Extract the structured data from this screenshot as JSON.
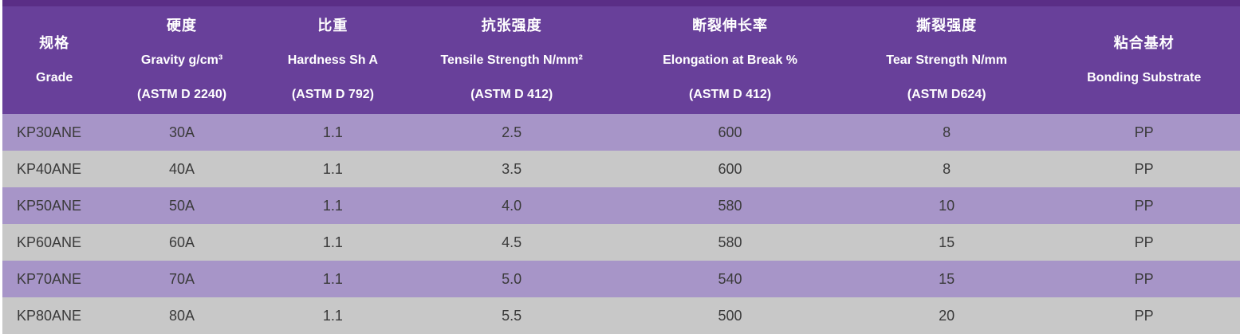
{
  "colors": {
    "top_strip": "#5a2e86",
    "header_bg": "#68409a",
    "header_text": "#ffffff",
    "row_purple": "#a795c8",
    "row_gray": "#c8c8c8",
    "body_text": "#3a3a3a"
  },
  "table": {
    "columns": [
      {
        "zh": "规格",
        "en": "Grade",
        "astm": ""
      },
      {
        "zh": "硬度",
        "en": "Gravity g/cm³",
        "astm": "(ASTM D 2240)"
      },
      {
        "zh": "比重",
        "en": "Hardness Sh A",
        "astm": "(ASTM D 792)"
      },
      {
        "zh": "抗张强度",
        "en": "Tensile Strength N/mm²",
        "astm": "(ASTM D 412)"
      },
      {
        "zh": "断裂伸长率",
        "en": "Elongation at Break %",
        "astm": "(ASTM D 412)"
      },
      {
        "zh": "撕裂强度",
        "en": "Tear Strength N/mm",
        "astm": "(ASTM D624)"
      },
      {
        "zh": "粘合基材",
        "en": "Bonding Substrate",
        "astm": ""
      }
    ],
    "rows": [
      [
        "KP30ANE",
        "30A",
        "1.1",
        "2.5",
        "600",
        "8",
        "PP"
      ],
      [
        "KP40ANE",
        "40A",
        "1.1",
        "3.5",
        "600",
        "8",
        "PP"
      ],
      [
        "KP50ANE",
        "50A",
        "1.1",
        "4.0",
        "580",
        "10",
        "PP"
      ],
      [
        "KP60ANE",
        "60A",
        "1.1",
        "4.5",
        "580",
        "15",
        "PP"
      ],
      [
        "KP70ANE",
        "70A",
        "1.1",
        "5.0",
        "540",
        "15",
        "PP"
      ],
      [
        "KP80ANE",
        "80A",
        "1.1",
        "5.5",
        "500",
        "20",
        "PP"
      ]
    ]
  },
  "chart_data": {
    "type": "table",
    "title": "",
    "columns_zh": [
      "规格",
      "硬度",
      "比重",
      "抗张强度",
      "断裂伸长率",
      "撕裂强度",
      "粘合基材"
    ],
    "columns_en": [
      "Grade",
      "Gravity g/cm³ (ASTM D 2240)",
      "Hardness Sh A (ASTM D 792)",
      "Tensile Strength N/mm² (ASTM D 412)",
      "Elongation at Break % (ASTM D 412)",
      "Tear Strength N/mm (ASTM D624)",
      "Bonding Substrate"
    ],
    "rows": [
      [
        "KP30ANE",
        "30A",
        "1.1",
        "2.5",
        "600",
        "8",
        "PP"
      ],
      [
        "KP40ANE",
        "40A",
        "1.1",
        "3.5",
        "600",
        "8",
        "PP"
      ],
      [
        "KP50ANE",
        "50A",
        "1.1",
        "4.0",
        "580",
        "10",
        "PP"
      ],
      [
        "KP60ANE",
        "60A",
        "1.1",
        "4.5",
        "580",
        "15",
        "PP"
      ],
      [
        "KP70ANE",
        "70A",
        "1.1",
        "5.0",
        "540",
        "15",
        "PP"
      ],
      [
        "KP80ANE",
        "80A",
        "1.1",
        "5.5",
        "500",
        "20",
        "PP"
      ]
    ]
  }
}
